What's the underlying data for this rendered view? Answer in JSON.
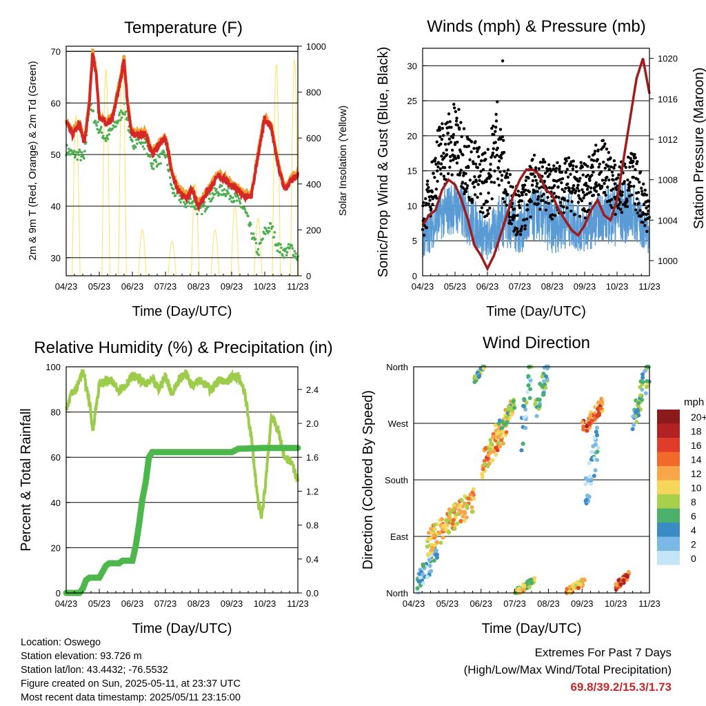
{
  "footer": {
    "location": "Location: Oswego",
    "elevation": "Station elevation: 93.726 m",
    "latlon": "Station lat/lon: 43.4432; -76.5532",
    "created": "Figure created on Sun, 2025-05-11, at 23:37 UTC",
    "timestamp": "Most recent data timestamp: 2025/05/11 23:15:00",
    "extremes_title": "Extremes For Past 7 Days",
    "extremes_sub": "(High/Low/Max Wind/Total Precipitation)",
    "extremes_values": "69.8/39.2/15.3/1.73"
  },
  "colors": {
    "temp_red": "#d62728",
    "temp_orange": "#f0a030",
    "dewpoint_green": "#4caf50",
    "solar_yellow": "#ffe066",
    "gust_black": "#000000",
    "wind_blue": "#5b9bd5",
    "pressure_maroon": "#a01c1c",
    "rh_lightgreen": "#9ccc4a",
    "precip_green": "#4cb84c",
    "extremes_red": "#c62828"
  },
  "chart_data": [
    {
      "type": "line",
      "title": "Temperature (F)",
      "xlabel": "Time (Day/UTC)",
      "ylabel": "2m & 9m T (Red, Orange) & 2m Td (Green)",
      "y2label": "Solar Insolation (Yellow)",
      "x_ticks": [
        "04/23",
        "05/23",
        "06/23",
        "07/23",
        "08/23",
        "09/23",
        "10/23",
        "11/23"
      ],
      "xlim": [
        0,
        7
      ],
      "ylim": [
        26.5,
        71
      ],
      "y_ticks": [
        30,
        40,
        50,
        60,
        70
      ],
      "y2lim": [
        0,
        1000
      ],
      "y2_ticks": [
        0,
        200,
        400,
        600,
        800,
        1000
      ],
      "series": [
        {
          "name": "2m T",
          "color": "#d62728",
          "x": [
            0,
            0.2,
            0.4,
            0.55,
            0.7,
            0.8,
            0.9,
            1.0,
            1.2,
            1.4,
            1.6,
            1.75,
            1.85,
            1.95,
            2.0,
            2.2,
            2.4,
            2.6,
            2.8,
            3.0,
            3.1,
            3.2,
            3.4,
            3.6,
            3.8,
            4.0,
            4.2,
            4.4,
            4.6,
            4.8,
            5.0,
            5.2,
            5.4,
            5.6,
            5.8,
            6.0,
            6.2,
            6.4,
            6.6,
            6.8,
            7.0
          ],
          "y": [
            56,
            54,
            56,
            52,
            60,
            69.8,
            66,
            57,
            56,
            57,
            63,
            68.5,
            60,
            55,
            54,
            54,
            54,
            50,
            52,
            53,
            50,
            46,
            43,
            41.5,
            43,
            40,
            42,
            44,
            46,
            45,
            44,
            43,
            42,
            42,
            50,
            57,
            55,
            48,
            43,
            45,
            46
          ]
        },
        {
          "name": "2m Td",
          "color": "#4caf50",
          "x": [
            0,
            0.2,
            0.4,
            0.55,
            0.7,
            0.8,
            0.9,
            1.0,
            1.2,
            1.4,
            1.6,
            1.75,
            1.85,
            1.95,
            2.0,
            2.2,
            2.4,
            2.6,
            2.8,
            3.0,
            3.1,
            3.2,
            3.4,
            3.6,
            3.8,
            4.0,
            4.2,
            4.4,
            4.6,
            4.8,
            5.0,
            5.2,
            5.4,
            5.6,
            5.8,
            6.0,
            6.2,
            6.4,
            6.6,
            6.8,
            7.0
          ],
          "y": [
            51,
            50,
            50,
            49,
            60,
            58,
            56,
            55,
            53,
            55,
            57,
            59,
            57,
            52,
            52,
            53,
            52,
            48,
            49,
            50,
            47,
            43,
            42,
            40.5,
            41,
            39,
            40,
            42,
            43,
            43,
            42,
            41,
            39,
            35,
            31,
            35,
            36,
            32,
            31,
            32,
            30
          ]
        },
        {
          "name": "Solar",
          "color": "#ffe066",
          "axis": "y2",
          "peaks": [
            [
              0.3,
              700
            ],
            [
              1.2,
              900
            ],
            [
              1.7,
              950
            ],
            [
              2.3,
              200
            ],
            [
              3.2,
              150
            ],
            [
              3.9,
              400
            ],
            [
              4.5,
              200
            ],
            [
              5.1,
              300
            ],
            [
              5.8,
              250
            ],
            [
              6.35,
              920
            ],
            [
              6.9,
              940
            ]
          ]
        }
      ]
    },
    {
      "type": "scatter",
      "title": "Winds (mph) & Pressure (mb)",
      "xlabel": "Time (Day/UTC)",
      "ylabel": "Sonic/Prop Wind & Gust (Blue, Black)",
      "y2label": "Station Pressure (Maroon)",
      "x_ticks": [
        "04/23",
        "05/23",
        "06/23",
        "07/23",
        "08/23",
        "09/23",
        "10/23",
        "11/23"
      ],
      "xlim": [
        0,
        7
      ],
      "ylim": [
        0,
        32.5
      ],
      "y_ticks": [
        0,
        5,
        10,
        15,
        20,
        25,
        30
      ],
      "y2lim": [
        998.5,
        1021
      ],
      "y2_ticks": [
        1000,
        1004,
        1008,
        1012,
        1016,
        1020
      ],
      "series": [
        {
          "name": "Pressure",
          "color": "#a01c1c",
          "x": [
            0,
            0.2,
            0.4,
            0.6,
            0.8,
            1.0,
            1.2,
            1.4,
            1.6,
            1.8,
            2.0,
            2.2,
            2.4,
            2.6,
            2.8,
            3.0,
            3.2,
            3.4,
            3.6,
            3.8,
            4.0,
            4.2,
            4.4,
            4.6,
            4.8,
            5.0,
            5.2,
            5.4,
            5.6,
            5.8,
            6.0,
            6.2,
            6.4,
            6.6,
            6.8,
            7.0
          ],
          "y": [
            1003.5,
            1004.5,
            1005,
            1007,
            1008,
            1007.5,
            1006,
            1004,
            1001.5,
            1000.5,
            999.2,
            1000.5,
            1002.5,
            1004.5,
            1006.5,
            1008,
            1009,
            1009,
            1008.5,
            1007,
            1006.5,
            1005,
            1004,
            1003,
            1002.5,
            1003.5,
            1005,
            1006,
            1004.5,
            1004,
            1006,
            1010,
            1014,
            1018,
            1020,
            1016.5
          ]
        },
        {
          "name": "Wind",
          "color": "#5b9bd5",
          "envelope": [
            [
              0,
              2,
              8
            ],
            [
              0.5,
              5,
              12
            ],
            [
              1.0,
              6,
              14
            ],
            [
              1.5,
              4,
              12
            ],
            [
              2.0,
              2,
              8
            ],
            [
              2.5,
              4,
              13
            ],
            [
              3.0,
              3,
              10
            ],
            [
              3.5,
              5,
              13
            ],
            [
              4.0,
              3,
              11
            ],
            [
              4.5,
              4,
              12
            ],
            [
              5.0,
              3,
              10
            ],
            [
              5.5,
              5,
              12
            ],
            [
              6.0,
              4,
              14
            ],
            [
              6.5,
              5,
              13
            ],
            [
              7.0,
              3,
              8
            ]
          ]
        },
        {
          "name": "Gust",
          "color": "#000000",
          "envelope": [
            [
              0,
              5,
              10
            ],
            [
              0.5,
              12,
              22
            ],
            [
              1.0,
              14,
              25
            ],
            [
              1.5,
              10,
              20
            ],
            [
              2.0,
              8,
              18
            ],
            [
              2.3,
              14,
              26
            ],
            [
              2.6,
              8,
              16
            ],
            [
              3.0,
              5,
              12
            ],
            [
              3.5,
              10,
              18
            ],
            [
              4.0,
              8,
              16
            ],
            [
              4.5,
              9,
              17
            ],
            [
              5.0,
              8,
              16
            ],
            [
              5.5,
              12,
              20
            ],
            [
              6.0,
              8,
              16
            ],
            [
              6.5,
              10,
              18
            ],
            [
              7.0,
              5,
              12
            ]
          ]
        }
      ]
    },
    {
      "type": "line",
      "title": "Relative Humidity (%) & Precipitation (in)",
      "xlabel": "Time (Day/UTC)",
      "ylabel": "Percent & Total Rainfall",
      "x_ticks": [
        "04/23",
        "05/23",
        "06/23",
        "07/23",
        "08/23",
        "09/23",
        "10/23",
        "11/23"
      ],
      "xlim": [
        0,
        7
      ],
      "ylim": [
        0,
        100
      ],
      "y_ticks": [
        0,
        20,
        40,
        60,
        80,
        100
      ],
      "y2lim": [
        0,
        2.667
      ],
      "y2_ticks": [
        "0.0",
        "0.4",
        "0.8",
        "1.2",
        "1.6",
        "2.0",
        "2.4"
      ],
      "series": [
        {
          "name": "RH",
          "color": "#9ccc4a",
          "x": [
            0,
            0.15,
            0.3,
            0.5,
            0.7,
            0.8,
            1.0,
            1.2,
            1.4,
            1.6,
            1.8,
            2.0,
            2.2,
            2.4,
            2.6,
            2.8,
            3.0,
            3.2,
            3.4,
            3.6,
            3.8,
            4.0,
            4.2,
            4.4,
            4.6,
            4.8,
            5.0,
            5.2,
            5.4,
            5.6,
            5.8,
            5.9,
            6.0,
            6.2,
            6.4,
            6.6,
            6.8,
            7.0
          ],
          "y": [
            82,
            88,
            90,
            98,
            85,
            72,
            92,
            94,
            93,
            90,
            92,
            96,
            95,
            92,
            94,
            90,
            96,
            88,
            94,
            97,
            92,
            95,
            92,
            90,
            94,
            93,
            95,
            96,
            88,
            68,
            40,
            33,
            45,
            78,
            72,
            60,
            58,
            49
          ]
        },
        {
          "name": "Total Rainfall",
          "color": "#4cb84c",
          "axis": "y2",
          "x": [
            0,
            0.4,
            0.5,
            0.6,
            0.7,
            1.0,
            1.1,
            1.2,
            1.3,
            1.6,
            1.7,
            2.0,
            2.1,
            2.2,
            2.3,
            2.4,
            2.5,
            2.6,
            2.7,
            3.0,
            4.0,
            5.0,
            5.2,
            6.0,
            7.0
          ],
          "y": [
            0,
            0,
            0.05,
            0.15,
            0.18,
            0.18,
            0.25,
            0.32,
            0.35,
            0.35,
            0.38,
            0.38,
            0.55,
            0.8,
            1.1,
            1.3,
            1.6,
            1.66,
            1.66,
            1.66,
            1.66,
            1.66,
            1.7,
            1.71,
            1.71
          ]
        }
      ]
    },
    {
      "type": "scatter",
      "title": "Wind Direction",
      "xlabel": "Time (Day/UTC)",
      "ylabel": "Direction (Colored By Speed)",
      "x_ticks": [
        "04/23",
        "05/23",
        "06/23",
        "07/23",
        "08/23",
        "09/23",
        "10/23",
        "11/23"
      ],
      "xlim": [
        0,
        7
      ],
      "ylim": [
        0,
        360
      ],
      "y_tick_labels": [
        "North",
        "East",
        "South",
        "West",
        "North"
      ],
      "colorbar": {
        "title": "mph",
        "labels": [
          "20+",
          "18",
          "16",
          "14",
          "12",
          "10",
          "8",
          "6",
          "4",
          "2",
          "0"
        ],
        "colors": [
          "#8b1a1a",
          "#b22222",
          "#e03c2c",
          "#f26a2a",
          "#f9a64a",
          "#f5d65a",
          "#a8d04a",
          "#4caf6a",
          "#3a8ac4",
          "#7ab8e6",
          "#c4e4f7"
        ]
      },
      "clusters": [
        [
          0.1,
          0.7,
          10,
          70,
          3
        ],
        [
          0.4,
          1.8,
          80,
          150,
          11
        ],
        [
          1.8,
          2.1,
          340,
          360,
          6
        ],
        [
          2.0,
          2.8,
          200,
          270,
          12
        ],
        [
          2.4,
          3.0,
          250,
          300,
          8
        ],
        [
          3.0,
          3.6,
          0,
          20,
          9
        ],
        [
          3.2,
          3.5,
          250,
          360,
          4
        ],
        [
          3.6,
          4.0,
          290,
          360,
          5
        ],
        [
          4.5,
          5.1,
          0,
          20,
          12
        ],
        [
          5.0,
          5.6,
          260,
          300,
          14
        ],
        [
          5.1,
          5.5,
          150,
          250,
          2
        ],
        [
          6.0,
          6.4,
          10,
          30,
          15
        ],
        [
          6.5,
          7.0,
          270,
          360,
          6
        ]
      ]
    }
  ]
}
